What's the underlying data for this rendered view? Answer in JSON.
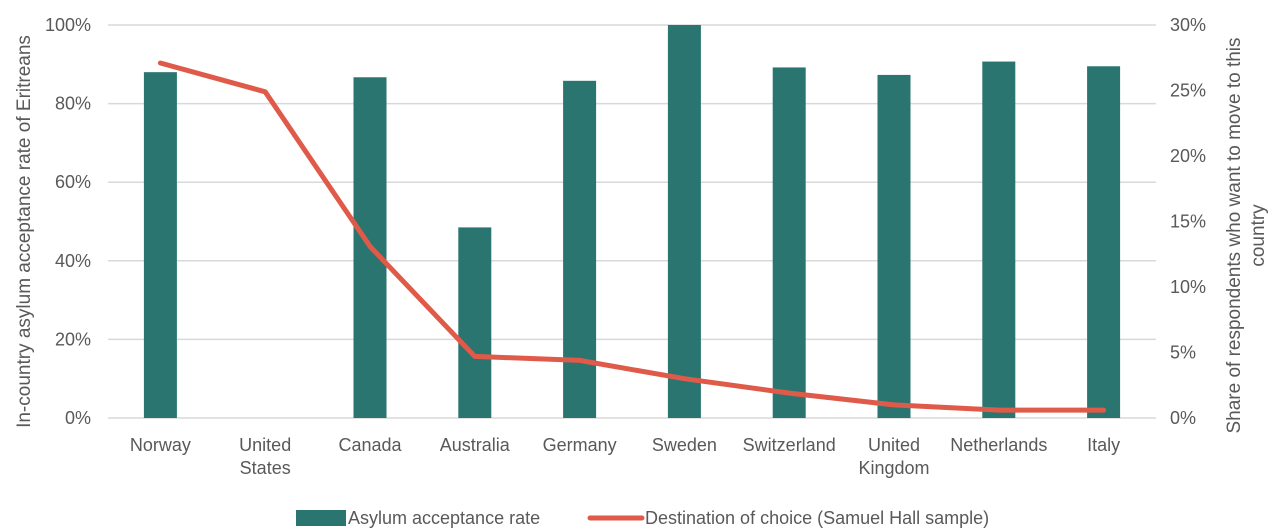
{
  "chart_data": {
    "type": "bar",
    "categories": [
      [
        "Norway"
      ],
      [
        "United",
        "States"
      ],
      [
        "Canada"
      ],
      [
        "Australia"
      ],
      [
        "Germany"
      ],
      [
        "Sweden"
      ],
      [
        "Switzerland"
      ],
      [
        "United",
        "Kingdom"
      ],
      [
        "Netherlands"
      ],
      [
        "Italy"
      ]
    ],
    "series": [
      {
        "name": "Asylum acceptance rate",
        "type": "bar",
        "axis": "left",
        "color": "#2a7570",
        "values": [
          88,
          null,
          86.7,
          48.5,
          85.8,
          100,
          89.2,
          87.3,
          90.7,
          89.5
        ]
      },
      {
        "name": "Destination of choice (Samuel Hall sample)",
        "type": "line",
        "axis": "right",
        "color": "#e05a4a",
        "values": [
          27.1,
          24.9,
          13.1,
          4.7,
          4.4,
          3.0,
          1.9,
          1.0,
          0.6,
          0.6
        ]
      }
    ],
    "ylabel": "In-country asylum acceptance rate of Eritreans",
    "y2label": [
      "Share of respondents who want to move to this",
      "country"
    ],
    "ylim": [
      0,
      100
    ],
    "y2lim": [
      0,
      30
    ],
    "yticks": [
      "0%",
      "20%",
      "40%",
      "60%",
      "80%",
      "100%"
    ],
    "y2ticks": [
      "0%",
      "5%",
      "10%",
      "15%",
      "20%",
      "25%",
      "30%"
    ],
    "grid": true,
    "legend_position": "bottom"
  }
}
